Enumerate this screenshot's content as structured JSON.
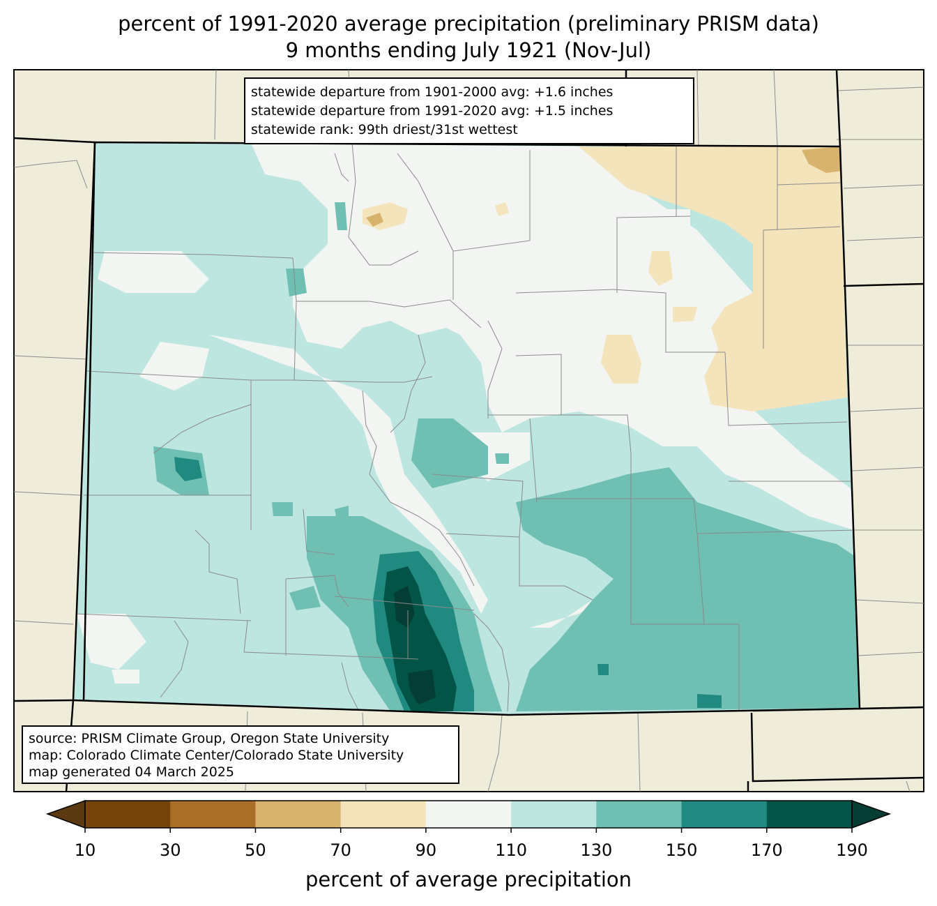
{
  "title": {
    "line1": "percent of 1991-2020 average precipitation (preliminary PRISM data)",
    "line2": "9 months ending July 1921 (Nov-Jul)"
  },
  "stats": {
    "line1": "statewide departure from 1901-2000 avg: +1.6 inches",
    "line2": "statewide departure from 1991-2020 avg: +1.5 inches",
    "line3": "statewide rank: 99th driest/31st wettest"
  },
  "source": {
    "line1": "source: PRISM Climate Group, Oregon State University",
    "line2": "map: Colorado Climate Center/Colorado State University",
    "line3": "map generated 04 March 2025"
  },
  "colorbar": {
    "label": "percent of average precipitation",
    "ticks": [
      "10",
      "30",
      "50",
      "70",
      "90",
      "110",
      "130",
      "150",
      "170",
      "190"
    ],
    "colors": [
      "#744409",
      "#aa6f26",
      "#d8b36e",
      "#f3e4bc",
      "#f3f5f3",
      "#bde6e0",
      "#6fbfb3",
      "#218a80",
      "#015446"
    ],
    "under_color": "#5c3a11",
    "over_color": "#043d33"
  },
  "colors": {
    "land": "#efedda",
    "state_border": "#000000",
    "county_border": "#8a8a8a"
  }
}
